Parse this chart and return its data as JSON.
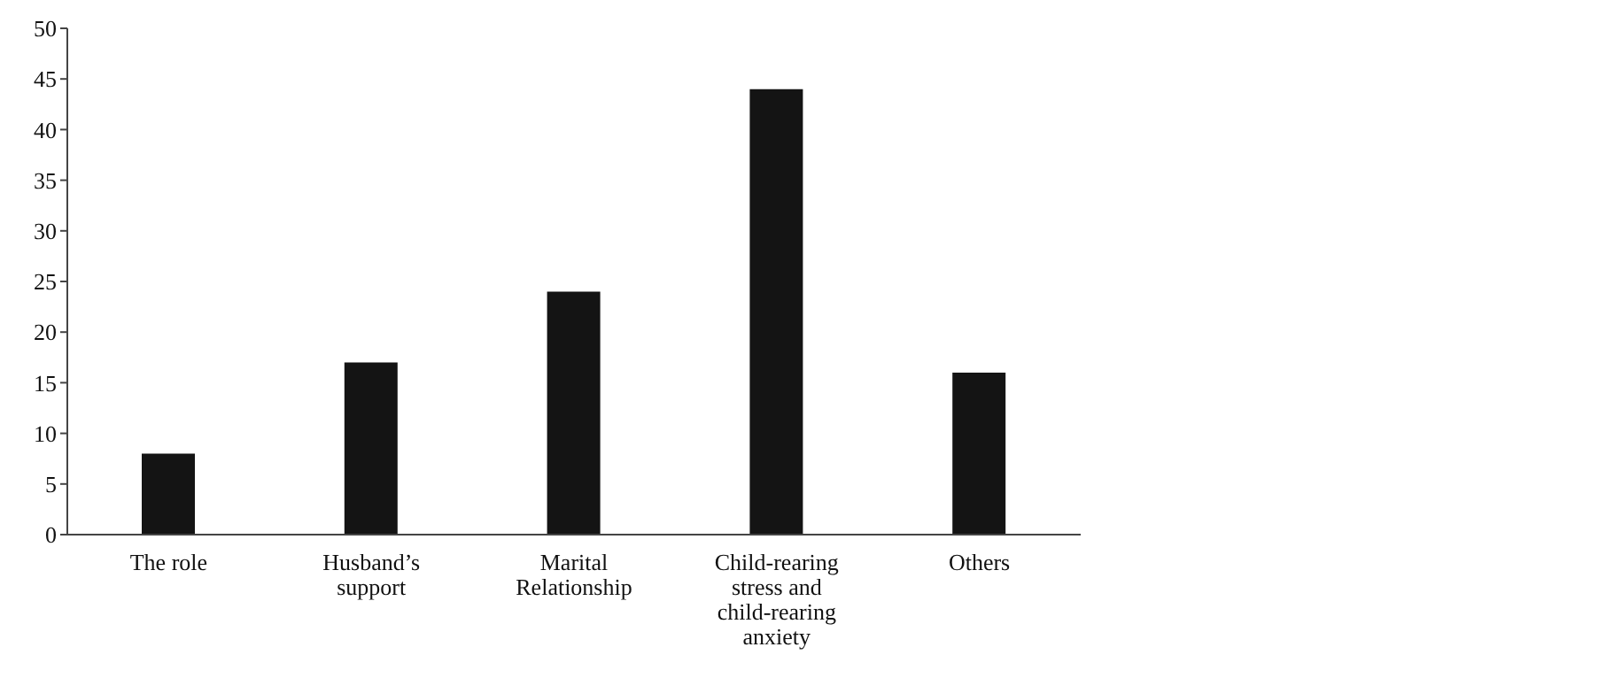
{
  "chart_data": {
    "type": "bar",
    "categories": [
      "The role",
      "Husband’s support",
      "Marital Relationship",
      "Child-rearing stress and child-rearing anxiety",
      "Others"
    ],
    "values": [
      8,
      17,
      24,
      44,
      16
    ],
    "color": "#141414",
    "ylim": [
      0,
      50
    ],
    "yticks": [
      0,
      5,
      10,
      15,
      20,
      25,
      30,
      35,
      40,
      45,
      50
    ],
    "grid": false,
    "legend": false
  }
}
